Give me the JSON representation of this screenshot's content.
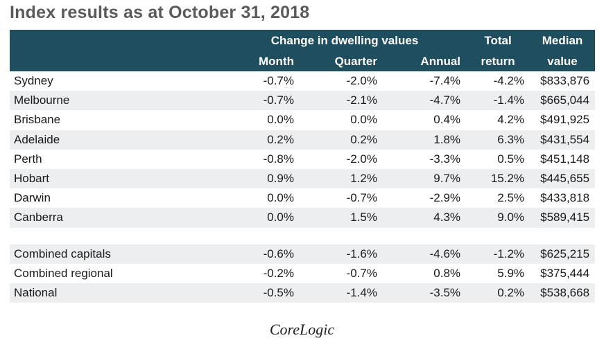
{
  "title": "Index results as at October 31, 2018",
  "header": {
    "group_label": "Change in dwelling values",
    "month": "Month",
    "quarter": "Quarter",
    "annual": "Annual",
    "total_line1": "Total",
    "total_line2": "return",
    "median_line1": "Median",
    "median_line2": "value"
  },
  "rows": [
    {
      "name": "Sydney",
      "month": "-0.7%",
      "quarter": "-2.0%",
      "annual": "-7.4%",
      "total": "-4.2%",
      "median": "$833,876"
    },
    {
      "name": "Melbourne",
      "month": "-0.7%",
      "quarter": "-2.1%",
      "annual": "-4.7%",
      "total": "-1.4%",
      "median": "$665,044"
    },
    {
      "name": "Brisbane",
      "month": "0.0%",
      "quarter": "0.0%",
      "annual": "0.4%",
      "total": "4.2%",
      "median": "$491,925"
    },
    {
      "name": "Adelaide",
      "month": "0.2%",
      "quarter": "0.2%",
      "annual": "1.8%",
      "total": "6.3%",
      "median": "$431,554"
    },
    {
      "name": "Perth",
      "month": "-0.8%",
      "quarter": "-2.0%",
      "annual": "-3.3%",
      "total": "0.5%",
      "median": "$451,148"
    },
    {
      "name": "Hobart",
      "month": "0.9%",
      "quarter": "1.2%",
      "annual": "9.7%",
      "total": "15.2%",
      "median": "$445,655"
    },
    {
      "name": "Darwin",
      "month": "0.0%",
      "quarter": "-0.7%",
      "annual": "-2.9%",
      "total": "2.5%",
      "median": "$433,818"
    },
    {
      "name": "Canberra",
      "month": "0.0%",
      "quarter": "1.5%",
      "annual": "4.3%",
      "total": "9.0%",
      "median": "$589,415"
    },
    {
      "name": "Combined capitals",
      "month": "-0.6%",
      "quarter": "-1.6%",
      "annual": "-4.6%",
      "total": "-1.2%",
      "median": "$625,215"
    },
    {
      "name": "Combined regional",
      "month": "-0.2%",
      "quarter": "-0.7%",
      "annual": "0.8%",
      "total": "5.9%",
      "median": "$375,444"
    },
    {
      "name": "National",
      "month": "-0.5%",
      "quarter": "-1.4%",
      "annual": "-3.5%",
      "total": "0.2%",
      "median": "$538,668"
    }
  ],
  "source": "CoreLogic",
  "colors": {
    "header_bg": "#1f4e5f",
    "row_shade": "#eceeef",
    "title": "#5a5a5a"
  }
}
